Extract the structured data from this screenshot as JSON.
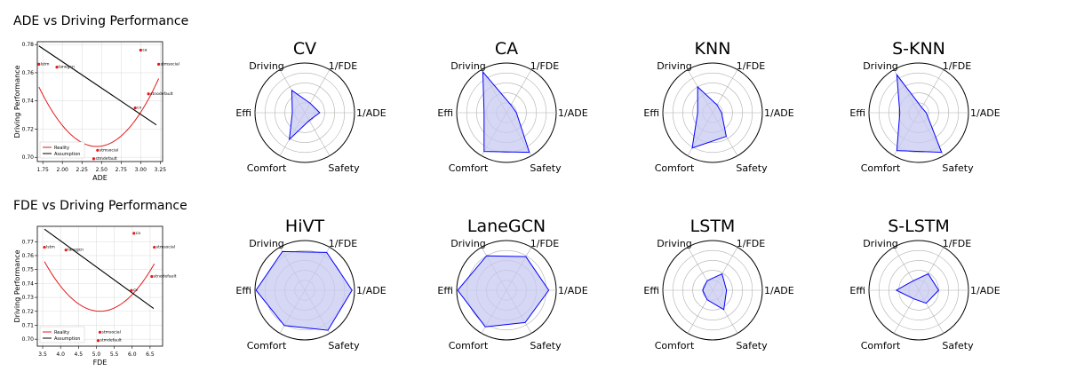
{
  "colors": {
    "reality": "#e31a1c",
    "assumption": "#000000",
    "point": "#e31a1c",
    "radar_line": "#0000ff",
    "radar_fill": "#c8c8f2",
    "grid": "#b0b0b0"
  },
  "chart_data": [
    {
      "type": "scatter",
      "title": "ADE vs Driving Performance",
      "xlabel": "ADE",
      "ylabel": "Driving Performance",
      "xlim": [
        1.68,
        3.28
      ],
      "ylim": [
        0.697,
        0.782
      ],
      "xticks": [
        "1.75",
        "2.00",
        "2.25",
        "2.50",
        "2.75",
        "3.00",
        "3.25"
      ],
      "yticks": [
        "0.70",
        "0.72",
        "0.74",
        "0.76",
        "0.78"
      ],
      "yticks_values": [
        0.7,
        0.72,
        0.74,
        0.76,
        0.78
      ],
      "xticks_values": [
        1.75,
        2.0,
        2.25,
        2.5,
        2.75,
        3.0,
        3.25
      ],
      "points": [
        {
          "label": "lstm",
          "x": 1.7,
          "y": 0.766
        },
        {
          "label": "lanegcn",
          "x": 1.93,
          "y": 0.764
        },
        {
          "label": "ca",
          "x": 3.0,
          "y": 0.776
        },
        {
          "label": "stmsocial",
          "x": 3.23,
          "y": 0.766
        },
        {
          "label": "stnodefault",
          "x": 3.1,
          "y": 0.745
        },
        {
          "label": "cv",
          "x": 2.93,
          "y": 0.735
        },
        {
          "label": "stmsocial",
          "x": 2.45,
          "y": 0.705
        },
        {
          "label": "stmdefault",
          "x": 2.4,
          "y": 0.699
        }
      ],
      "series": [
        {
          "name": "Reality",
          "curve": "quadratic",
          "coef": [
            0.0772,
            -0.3767,
            1.1672
          ],
          "x_range": [
            1.7,
            3.23
          ]
        },
        {
          "name": "Assumption",
          "curve": "linear",
          "endpoints": [
            [
              1.7,
              0.779
            ],
            [
              3.2,
              0.723
            ]
          ]
        }
      ],
      "legend_position": "lower-left"
    },
    {
      "type": "scatter",
      "title": "FDE vs Driving Performance",
      "xlabel": "FDE",
      "ylabel": "Driving Performance",
      "xlim": [
        3.35,
        6.85
      ],
      "ylim": [
        0.695,
        0.781
      ],
      "xticks": [
        "3.5",
        "4.0",
        "4.5",
        "5.0",
        "5.5",
        "6.0",
        "6.5"
      ],
      "xticks_values": [
        3.5,
        4.0,
        4.5,
        5.0,
        5.5,
        6.0,
        6.5
      ],
      "yticks": [
        "0.70",
        "0.71",
        "0.72",
        "0.73",
        "0.74",
        "0.75",
        "0.76",
        "0.77"
      ],
      "yticks_values": [
        0.7,
        0.71,
        0.72,
        0.73,
        0.74,
        0.75,
        0.76,
        0.77
      ],
      "points": [
        {
          "label": "lstm",
          "x": 3.55,
          "y": 0.766
        },
        {
          "label": "lanegcn",
          "x": 4.15,
          "y": 0.764
        },
        {
          "label": "ca",
          "x": 6.05,
          "y": 0.776
        },
        {
          "label": "stmsocial",
          "x": 6.62,
          "y": 0.766
        },
        {
          "label": "stnodefault",
          "x": 6.55,
          "y": 0.745
        },
        {
          "label": "cv",
          "x": 5.98,
          "y": 0.735
        },
        {
          "label": "stmsocial",
          "x": 5.1,
          "y": 0.705
        },
        {
          "label": "stmdefault",
          "x": 5.05,
          "y": 0.699
        }
      ],
      "series": [
        {
          "name": "Reality",
          "curve": "quadratic",
          "coef": [
            0.0148,
            -0.151,
            1.1052
          ],
          "x_range": [
            3.55,
            6.62
          ]
        },
        {
          "name": "Assumption",
          "curve": "linear",
          "endpoints": [
            [
              3.55,
              0.779
            ],
            [
              6.6,
              0.722
            ]
          ]
        }
      ],
      "legend_position": "lower-left"
    },
    {
      "type": "radar",
      "axes": [
        "Driving",
        "1/FDE",
        "1/ADE",
        "Safety",
        "Comfort",
        "Effi"
      ],
      "rmax": 1.0,
      "rings": [
        0.2,
        0.4,
        0.6,
        0.8,
        1.0
      ],
      "models": [
        {
          "title": "CV",
          "values": [
            0.52,
            0.22,
            0.3,
            0.18,
            0.62,
            0.25
          ]
        },
        {
          "title": "CA",
          "values": [
            0.95,
            0.18,
            0.2,
            0.92,
            0.9,
            0.45
          ]
        },
        {
          "title": "KNN",
          "values": [
            0.6,
            0.18,
            0.18,
            0.55,
            0.82,
            0.3
          ]
        },
        {
          "title": "S-KNN",
          "values": [
            0.88,
            0.12,
            0.15,
            0.92,
            0.88,
            0.38
          ]
        },
        {
          "title": "HiVT",
          "values": [
            0.9,
            0.88,
            0.95,
            0.93,
            0.82,
            0.98
          ]
        },
        {
          "title": "LaneGCN",
          "values": [
            0.8,
            0.78,
            0.85,
            0.75,
            0.85,
            0.98
          ]
        },
        {
          "title": "LSTM",
          "values": [
            0.22,
            0.38,
            0.28,
            0.45,
            0.22,
            0.2
          ]
        },
        {
          "title": "S-LSTM",
          "values": [
            0.22,
            0.38,
            0.4,
            0.3,
            0.2,
            0.45
          ]
        }
      ]
    }
  ]
}
